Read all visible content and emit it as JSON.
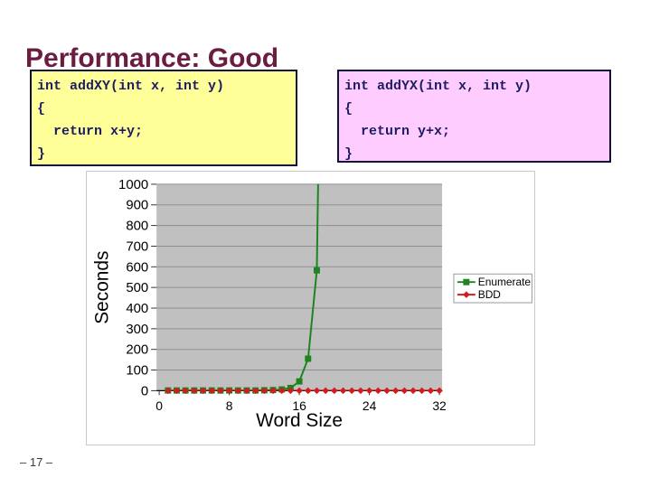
{
  "slide": {
    "title": "Performance: Good",
    "title_color": "#6b1c40",
    "page_number": "– 17 –"
  },
  "code_boxes": [
    {
      "id": "addxy",
      "bg": "#ffff99",
      "text_color": "#1c1c64",
      "lines": [
        "int addXY(int x, int y)",
        "{",
        "  return x+y;",
        "}"
      ]
    },
    {
      "id": "addyx",
      "bg": "#ffccff",
      "text_color": "#1c1c64",
      "lines": [
        "int addYX(int x, int y)",
        "{",
        "  return y+x;",
        "}"
      ]
    }
  ],
  "chart_data": {
    "type": "line",
    "title": "",
    "xlabel": "Word Size",
    "ylabel": "Seconds",
    "xlim": [
      0,
      32
    ],
    "ylim": [
      0,
      1000
    ],
    "x_ticks": [
      0,
      8,
      16,
      24,
      32
    ],
    "y_tick_step": 100,
    "grid": true,
    "plot_bg": "#c0c0c0",
    "gridline_color": "#8f8f8f",
    "axis_line_color": "#000000",
    "legend_position": "right",
    "series": [
      {
        "name": "Enumerate",
        "color": "#1e8420",
        "marker": "square",
        "points": [
          [
            1,
            1
          ],
          [
            2,
            1
          ],
          [
            3,
            1
          ],
          [
            4,
            1
          ],
          [
            5,
            1
          ],
          [
            6,
            1
          ],
          [
            7,
            1
          ],
          [
            8,
            1
          ],
          [
            9,
            1
          ],
          [
            10,
            1
          ],
          [
            11,
            1
          ],
          [
            12,
            2
          ],
          [
            13,
            3
          ],
          [
            14,
            6
          ],
          [
            15,
            13
          ],
          [
            16,
            45
          ],
          [
            17,
            155
          ],
          [
            18,
            583
          ],
          [
            18.6,
            2300
          ]
        ]
      },
      {
        "name": "BDD",
        "color": "#d21c1c",
        "marker": "diamond",
        "points": [
          [
            1,
            0
          ],
          [
            2,
            0
          ],
          [
            3,
            0
          ],
          [
            4,
            0
          ],
          [
            5,
            0
          ],
          [
            6,
            0
          ],
          [
            7,
            0
          ],
          [
            8,
            0
          ],
          [
            9,
            0
          ],
          [
            10,
            0
          ],
          [
            11,
            0
          ],
          [
            12,
            0
          ],
          [
            13,
            0
          ],
          [
            14,
            0
          ],
          [
            15,
            0
          ],
          [
            16,
            0
          ],
          [
            17,
            0
          ],
          [
            18,
            0
          ],
          [
            19,
            0
          ],
          [
            20,
            0
          ],
          [
            21,
            0
          ],
          [
            22,
            0
          ],
          [
            23,
            0
          ],
          [
            24,
            0
          ],
          [
            25,
            0
          ],
          [
            26,
            0
          ],
          [
            27,
            0
          ],
          [
            28,
            0
          ],
          [
            29,
            0
          ],
          [
            30,
            0
          ],
          [
            31,
            0
          ],
          [
            32,
            0
          ]
        ]
      }
    ]
  }
}
